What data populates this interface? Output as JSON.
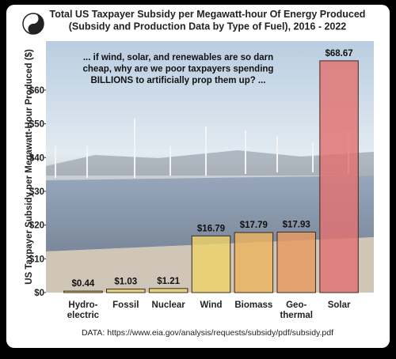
{
  "chart_data": {
    "type": "bar",
    "title": "Total US Taxpayer Subsidy per Megawatt-hour Of Energy Produced\n(Subsidy and Production Data by Type of Fuel), 2016 - 2022",
    "y_label": "US Taxpayer Subsidy per Megawatt-Hour Produced ($)",
    "annotation": "... if wind, solar, and renewables are so darn\ncheap, why are we poor taxpayers spending\nBILLIONS to artificially prop them up? ...",
    "source": "DATA: https://www.eia.gov/analysis/requests/subsidy/pdf/subsidy.pdf",
    "categories": [
      "Hydro-\nelectric",
      "Fossil",
      "Nuclear",
      "Wind",
      "Biomass",
      "Geo-\nthermal",
      "Solar"
    ],
    "values": [
      0.44,
      1.03,
      1.21,
      16.79,
      17.79,
      17.93,
      68.67
    ],
    "value_labels": [
      "$0.44",
      "$1.03",
      "$1.21",
      "$16.79",
      "$17.79",
      "$17.93",
      "$68.67"
    ],
    "colors": [
      "#e9d36e",
      "#e9d36e",
      "#e9d36e",
      "#ecd26a",
      "#ebb35f",
      "#e89a62",
      "#e27272"
    ],
    "ylim": [
      0,
      74.5
    ],
    "yticks": [
      {
        "value": 0,
        "label": "$0"
      },
      {
        "value": 10,
        "label": "$10"
      },
      {
        "value": 20,
        "label": "$20"
      },
      {
        "value": 30,
        "label": "$30"
      },
      {
        "value": 40,
        "label": "$40"
      },
      {
        "value": 50,
        "label": "$50"
      },
      {
        "value": 60,
        "label": "$60"
      }
    ]
  }
}
